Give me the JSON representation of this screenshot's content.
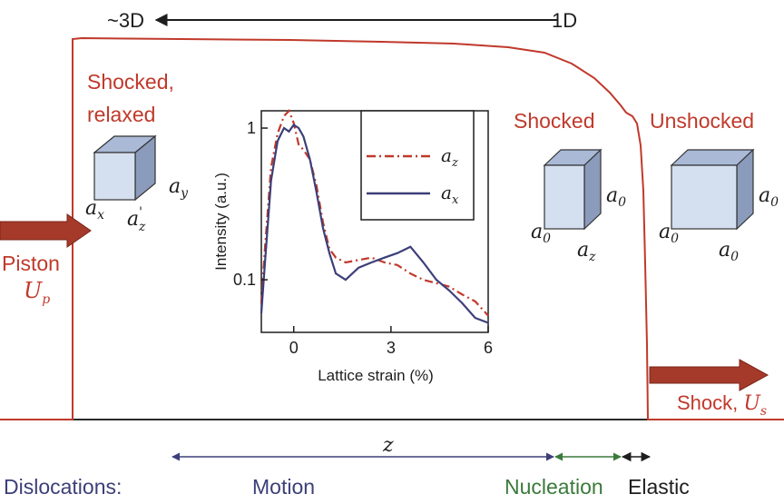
{
  "colors": {
    "red": "#c0392b",
    "navy": "#3c3f78",
    "green": "#3b7a3b",
    "dark": "#1e1e1e",
    "cube_face": "#d4dff0",
    "cube_top": "#a9b9d6",
    "cube_side": "#8b9bbb"
  },
  "scale_top": {
    "left_label": "~3D",
    "right_label": "1D"
  },
  "regions": {
    "relaxed": {
      "line1": "Shocked,",
      "line2": "relaxed"
    },
    "shocked": "Shocked",
    "unshocked": "Unshocked"
  },
  "piston": {
    "word": "Piston",
    "symbol": "U",
    "sub": "p"
  },
  "shock": {
    "word": "Shock, ",
    "symbol": "U",
    "sub": "s"
  },
  "position_axis": {
    "symbol": "z"
  },
  "dislocations": {
    "label": "Dislocations:",
    "motion": "Motion",
    "nucleation": "Nucleation",
    "elastic": "Elastic"
  },
  "cube_labels": {
    "relaxed": {
      "ax": "a",
      "ax_sub": "x",
      "ay": "a",
      "ay_sub": "y",
      "az": "a",
      "az_sub": "z",
      "az_prime": "'"
    },
    "shocked": {
      "a0_left": "a",
      "a0_left_sub": "0",
      "a0_right": "a",
      "a0_right_sub": "0",
      "az": "a",
      "az_sub": "z"
    },
    "unshocked": {
      "a0_left": "a",
      "a0_left_sub": "0",
      "a0_right": "a",
      "a0_right_sub": "0",
      "a0_bottom": "a",
      "a0_bottom_sub": "0"
    }
  },
  "chart_data": {
    "type": "line",
    "xlabel": "Lattice strain (%)",
    "ylabel": "Intensity (a.u.)",
    "xlim": [
      -1,
      6
    ],
    "ylim": [
      0.045,
      1.3
    ],
    "yscale": "log",
    "xticks": [
      0,
      3,
      6
    ],
    "xtick_labels": [
      "0",
      "3",
      "6"
    ],
    "yticks": [
      1,
      0.1
    ],
    "ytick_labels": [
      "1",
      "0.1"
    ],
    "grid": false,
    "legend_position": "top-right",
    "series": [
      {
        "name": "a_z",
        "legend_symbol": "a",
        "legend_sub": "z",
        "style": "dash-dot",
        "color": "#c0392b",
        "x": [
          -1.0,
          -0.9,
          -0.7,
          -0.5,
          -0.3,
          -0.15,
          0.0,
          0.15,
          0.3,
          0.5,
          0.7,
          0.9,
          1.1,
          1.3,
          1.6,
          2.0,
          2.4,
          2.8,
          3.2,
          3.6,
          4.0,
          4.4,
          4.8,
          5.2,
          5.6,
          6.0
        ],
        "y": [
          0.07,
          0.15,
          0.55,
          0.92,
          1.2,
          1.3,
          1.08,
          0.78,
          0.72,
          0.62,
          0.42,
          0.24,
          0.16,
          0.14,
          0.13,
          0.135,
          0.14,
          0.13,
          0.125,
          0.11,
          0.1,
          0.095,
          0.09,
          0.08,
          0.072,
          0.058
        ]
      },
      {
        "name": "a_x",
        "legend_symbol": "a",
        "legend_sub": "x",
        "style": "solid",
        "color": "#3c3f78",
        "x": [
          -1.0,
          -0.9,
          -0.7,
          -0.5,
          -0.3,
          -0.15,
          0.0,
          0.15,
          0.3,
          0.5,
          0.7,
          0.9,
          1.1,
          1.3,
          1.6,
          2.0,
          2.4,
          2.8,
          3.2,
          3.6,
          4.0,
          4.4,
          4.8,
          5.2,
          5.6,
          6.0
        ],
        "y": [
          0.06,
          0.12,
          0.45,
          0.82,
          1.0,
          0.95,
          1.05,
          1.0,
          0.88,
          0.62,
          0.38,
          0.22,
          0.15,
          0.11,
          0.1,
          0.12,
          0.13,
          0.14,
          0.15,
          0.165,
          0.13,
          0.1,
          0.085,
          0.07,
          0.056,
          0.052
        ]
      }
    ]
  }
}
